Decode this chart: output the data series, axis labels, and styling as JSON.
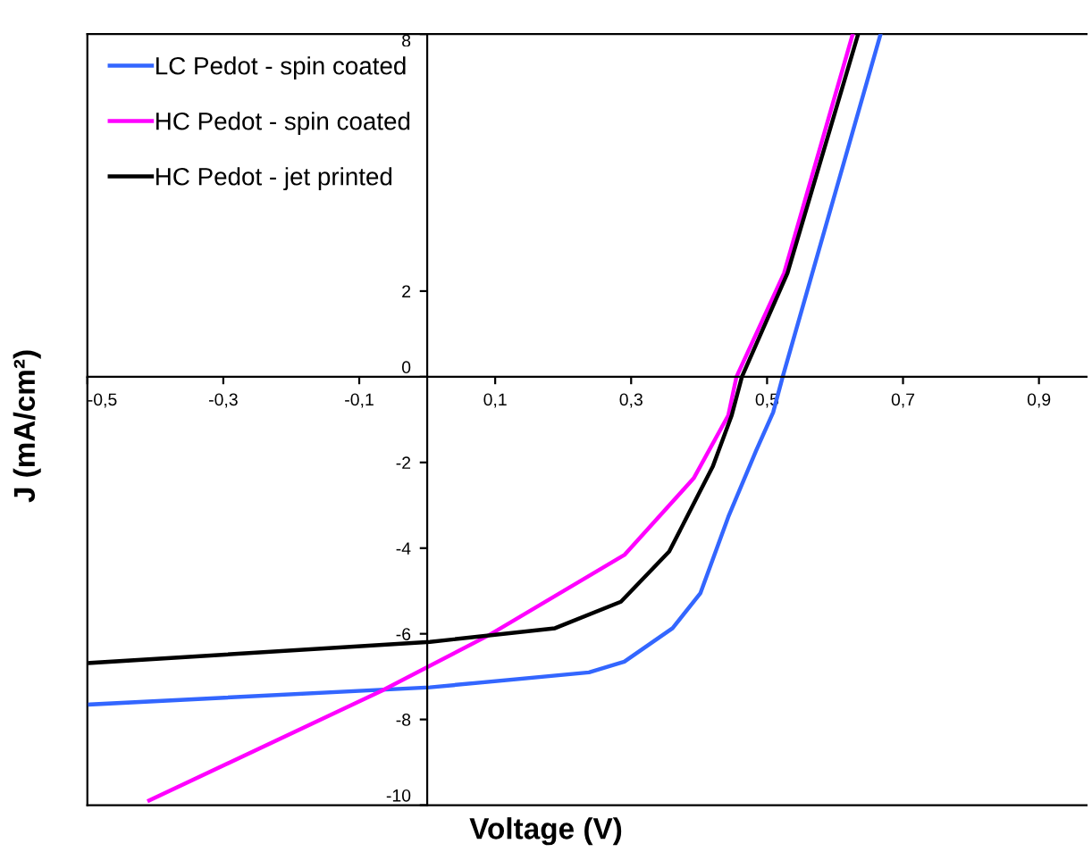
{
  "chart_data": {
    "type": "line",
    "xlabel": "Voltage (V)",
    "ylabel": "J (mA/cm²)",
    "xlim": [
      -0.5,
      0.97
    ],
    "ylim": [
      -10,
      8
    ],
    "xticks": [
      {
        "value": -0.5,
        "label": "-0,5"
      },
      {
        "value": -0.3,
        "label": "-0,3"
      },
      {
        "value": -0.1,
        "label": "-0,1"
      },
      {
        "value": 0.1,
        "label": "0,1"
      },
      {
        "value": 0.3,
        "label": "0,3"
      },
      {
        "value": 0.5,
        "label": "0,5"
      },
      {
        "value": 0.7,
        "label": "0,7"
      },
      {
        "value": 0.9,
        "label": "0,9"
      }
    ],
    "yticks": [
      -10,
      -8,
      -6,
      -4,
      -2,
      0,
      2,
      8
    ],
    "grid": false,
    "legend": "top left",
    "marker": "none",
    "line_style": "solid",
    "series": [
      {
        "name": "LC Pedot - spin coated",
        "color": "#3366ff",
        "x": [
          -0.496,
          0.004,
          0.238,
          0.29,
          0.361,
          0.402,
          0.443,
          0.484,
          0.509,
          0.523,
          0.667
        ],
        "values": [
          -7.65,
          -7.25,
          -6.9,
          -6.65,
          -5.87,
          -5.05,
          -3.27,
          -1.72,
          -0.83,
          0,
          8
        ]
      },
      {
        "name": "HC Pedot - spin coated",
        "color": "#ff00ff",
        "x": [
          -0.409,
          -0.067,
          0.091,
          0.29,
          0.392,
          0.443,
          0.455,
          0.525,
          0.626
        ],
        "values": [
          -9.89,
          -7.33,
          -6.03,
          -4.16,
          -2.37,
          -0.9,
          0,
          2.42,
          8
        ]
      },
      {
        "name": "HC Pedot - jet printed",
        "color": "#000000",
        "x": [
          -0.496,
          0.004,
          0.188,
          0.285,
          0.356,
          0.42,
          0.448,
          0.463,
          0.53,
          0.634
        ],
        "values": [
          -6.68,
          -6.19,
          -5.87,
          -5.25,
          -4.08,
          -2.1,
          -0.9,
          0,
          2.42,
          8
        ]
      }
    ]
  }
}
